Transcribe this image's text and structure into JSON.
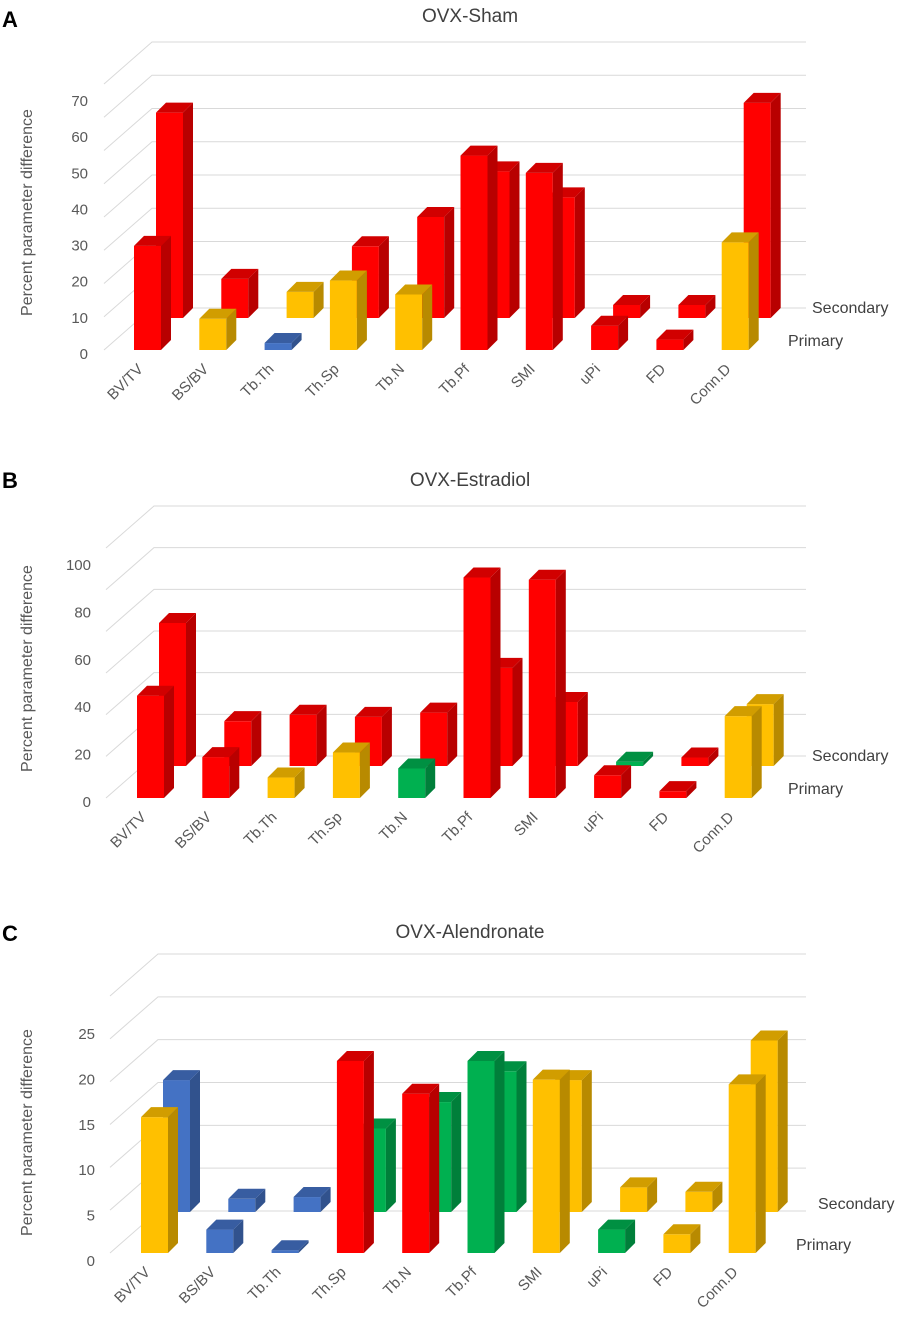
{
  "colors": {
    "red": "#ff0000",
    "gold": "#ffc000",
    "blue": "#4472c4",
    "green": "#00b050"
  },
  "chart_data": [
    {
      "panel": "A",
      "type": "bar",
      "subtype": "3d-column",
      "title": "OVX-Sham",
      "ylabel": "Percent parameter difference",
      "ylim": [
        0,
        70
      ],
      "yticks": [
        0,
        10,
        20,
        30,
        40,
        50,
        60,
        70
      ],
      "categories": [
        "BV/TV",
        "BS/BV",
        "Tb.Th",
        "Th.Sp",
        "Tb.N",
        "Tb.Pf",
        "SMI",
        "uPi",
        "FD",
        "Conn.D"
      ],
      "series": [
        {
          "name": "Primary",
          "values": [
            30,
            9,
            2,
            20,
            16,
            56,
            51,
            7,
            3,
            31
          ],
          "colors": [
            "red",
            "gold",
            "blue",
            "gold",
            "gold",
            "red",
            "red",
            "red",
            "red",
            "gold"
          ]
        },
        {
          "name": "Secondary",
          "values": [
            63,
            12,
            8,
            22,
            31,
            45,
            37,
            4,
            4,
            66
          ],
          "colors": [
            "red",
            "red",
            "gold",
            "red",
            "red",
            "red",
            "red",
            "red",
            "red",
            "red"
          ]
        }
      ]
    },
    {
      "panel": "B",
      "type": "bar",
      "subtype": "3d-column",
      "title": "OVX-Estradiol",
      "ylabel": "Percent parameter difference",
      "ylim": [
        0,
        100
      ],
      "yticks": [
        0,
        20,
        40,
        60,
        80,
        100
      ],
      "categories": [
        "BV/TV",
        "BS/BV",
        "Tb.Th",
        "Th.Sp",
        "Tb.N",
        "Tb.Pf",
        "SMI",
        "uPi",
        "FD",
        "Conn.D"
      ],
      "series": [
        {
          "name": "Primary",
          "values": [
            45,
            18,
            9,
            20,
            13,
            97,
            96,
            10,
            3,
            36
          ],
          "colors": [
            "red",
            "red",
            "gold",
            "gold",
            "green",
            "red",
            "red",
            "red",
            "red",
            "gold"
          ]
        },
        {
          "name": "Secondary",
          "values": [
            67,
            21,
            24,
            23,
            25,
            46,
            30,
            2,
            4,
            29
          ],
          "colors": [
            "red",
            "red",
            "red",
            "red",
            "red",
            "red",
            "red",
            "green",
            "red",
            "gold"
          ]
        }
      ]
    },
    {
      "panel": "C",
      "type": "bar",
      "subtype": "3d-column",
      "title": "OVX-Alendronate",
      "ylabel": "Percent parameter difference",
      "ylim": [
        0,
        25
      ],
      "yticks": [
        0,
        5,
        10,
        15,
        20,
        25
      ],
      "categories": [
        "BV/TV",
        "BS/BV",
        "Tb.Th",
        "Th.Sp",
        "Tb.N",
        "Tb.Pf",
        "SMI",
        "uPi",
        "FD",
        "Conn.D"
      ],
      "series": [
        {
          "name": "Primary",
          "values": [
            14.5,
            2.5,
            0.3,
            20.5,
            17,
            20.5,
            18.5,
            2.5,
            2,
            18
          ],
          "colors": [
            "gold",
            "blue",
            "blue",
            "red",
            "red",
            "green",
            "gold",
            "green",
            "gold",
            "gold"
          ]
        },
        {
          "name": "Secondary",
          "values": [
            15,
            1.5,
            1.7,
            9.5,
            12.5,
            16,
            15,
            2.8,
            2.3,
            19.5
          ],
          "colors": [
            "blue",
            "blue",
            "blue",
            "green",
            "green",
            "green",
            "gold",
            "gold",
            "gold",
            "gold"
          ]
        }
      ]
    }
  ]
}
